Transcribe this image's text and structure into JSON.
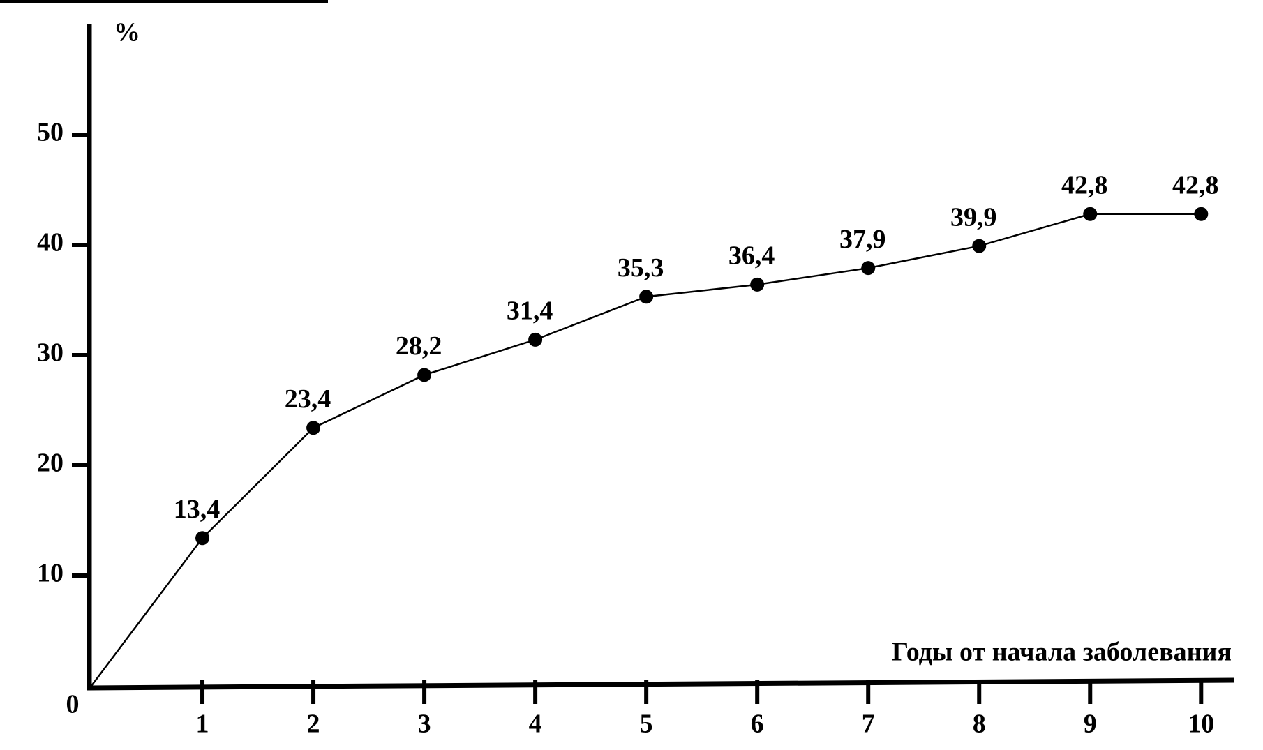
{
  "chart_data": {
    "type": "line",
    "y_label": "%",
    "x_label": "Годы от начала заболевания",
    "x": [
      0,
      1,
      2,
      3,
      4,
      5,
      6,
      7,
      8,
      9,
      10
    ],
    "series": [
      {
        "color": "#000000",
        "values": [
          0,
          13.4,
          23.4,
          28.2,
          31.4,
          35.3,
          36.4,
          37.9,
          39.9,
          42.8,
          42.8
        ],
        "value_labels": [
          null,
          "13,4",
          "23,4",
          "28,2",
          "31,4",
          "35,3",
          "36,4",
          "37,9",
          "39,9",
          "42,8",
          "42,8"
        ]
      }
    ],
    "xlim": [
      0,
      10.3
    ],
    "ylim": [
      0,
      60
    ],
    "xticks": [
      1,
      2,
      3,
      4,
      5,
      6,
      7,
      8,
      9,
      10
    ],
    "yticks": [
      0,
      10,
      20,
      30,
      40,
      50
    ],
    "grid": false
  }
}
